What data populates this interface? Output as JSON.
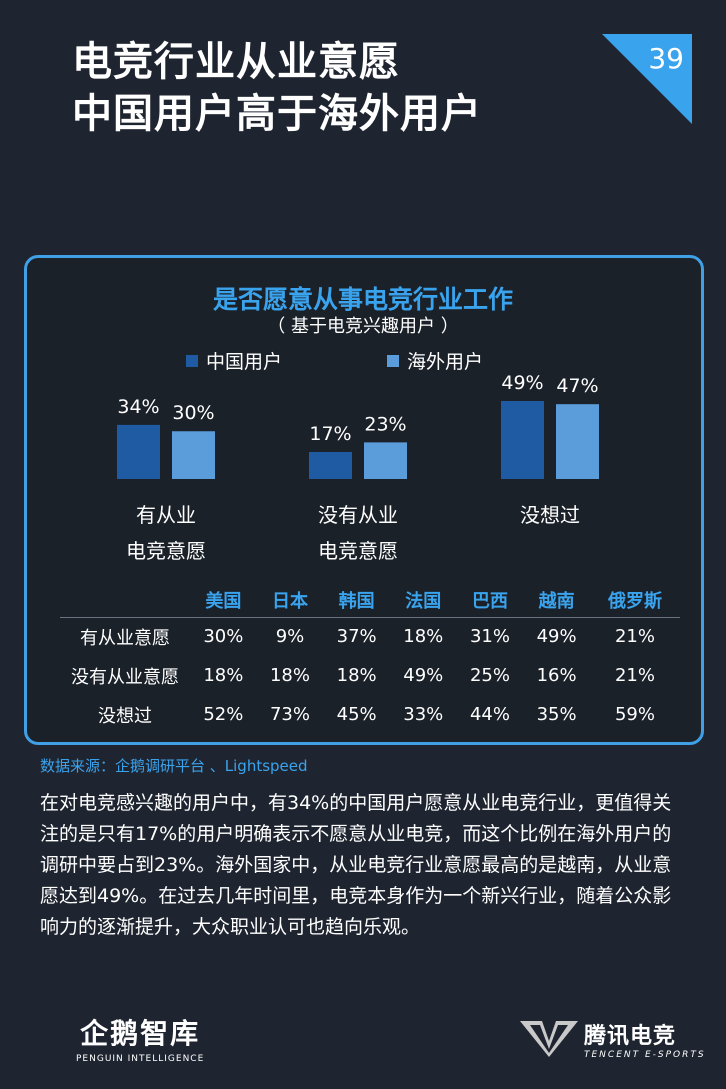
{
  "title": {
    "line1": "电竞行业从业意愿",
    "line2": "中国用户高于海外用户"
  },
  "page_number": "39",
  "colors": {
    "china": "#1f5ba3",
    "overseas": "#5b9ddb",
    "accent": "#3aa3ee",
    "background": "#1f2530"
  },
  "chart_data": {
    "type": "bar",
    "title": "是否愿意从事电竞行业工作",
    "subtitle": "（ 基于电竞兴趣用户 ）",
    "categories": [
      [
        "有从业",
        "电竞意愿"
      ],
      [
        "没有从业",
        "电竞意愿"
      ],
      [
        "没想过"
      ]
    ],
    "series": [
      {
        "name": "中国用户",
        "values": [
          34,
          17,
          49
        ],
        "labels": [
          "34%",
          "17%",
          "49%"
        ]
      },
      {
        "name": "海外用户",
        "values": [
          30,
          23,
          47
        ],
        "labels": [
          "30%",
          "23%",
          "47%"
        ]
      }
    ],
    "unit": "%",
    "ylim": [
      0,
      50
    ],
    "legend": "top-center",
    "grid": false
  },
  "table": {
    "columns": [
      "美国",
      "日本",
      "韩国",
      "法国",
      "巴西",
      "越南",
      "俄罗斯"
    ],
    "rows": [
      {
        "label": "有从业意愿",
        "values": [
          "30%",
          "9%",
          "37%",
          "18%",
          "31%",
          "49%",
          "21%"
        ]
      },
      {
        "label": "没有从业意愿",
        "values": [
          "18%",
          "18%",
          "18%",
          "49%",
          "25%",
          "16%",
          "21%"
        ]
      },
      {
        "label": "没想过",
        "values": [
          "52%",
          "73%",
          "45%",
          "33%",
          "44%",
          "35%",
          "59%"
        ]
      }
    ]
  },
  "source": "数据来源：企鹅调研平台 、Lightspeed",
  "body": "在对电竞感兴趣的用户中，有34%的中国用户愿意从业电竞行业，更值得关注的是只有17%的用户明确表示不愿意从业电竞，而这个比例在海外用户的调研中要占到23%。海外国家中，从业电竞行业意愿最高的是越南，从业意愿达到49%。在过去几年时间里，电竞本身作为一个新兴行业，随着公众影响力的逐渐提升，大众职业认可也趋向乐观。",
  "footer": {
    "left_logo_cn": "企鹅智库",
    "left_logo_en": "PENGUIN INTELLIGENCE",
    "right_logo_cn": "腾讯电竞",
    "right_logo_en": "TENCENT E-SPORTS"
  }
}
